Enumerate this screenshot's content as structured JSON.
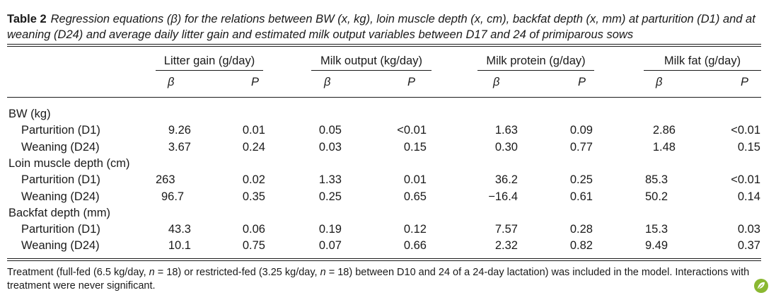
{
  "caption": {
    "label": "Table 2",
    "text": "Regression equations (β) for the relations between BW (x, kg), loin muscle depth (x, cm), backfat depth (x, mm) at parturition (D1) and at weaning (D24) and average daily litter gain and estimated milk output variables between D17 and 24 of primiparous sows"
  },
  "groups": [
    "Litter gain (g/day)",
    "Milk output (kg/day)",
    "Milk protein (g/day)",
    "Milk fat (g/day)"
  ],
  "subheaders": {
    "beta": "β",
    "p": "P"
  },
  "sections": [
    {
      "title": "BW (kg)",
      "rows": [
        {
          "label": "Parturition (D1)",
          "values": [
            "9.26",
            "0.01",
            "0.05",
            "<0.01",
            "1.63",
            "0.09",
            "2.86",
            "<0.01"
          ]
        },
        {
          "label": "Weaning (D24)",
          "values": [
            "3.67",
            "0.24",
            "0.03",
            "0.15",
            "0.30",
            "0.77",
            "1.48",
            "0.15"
          ]
        }
      ]
    },
    {
      "title": "Loin muscle depth (cm)",
      "rows": [
        {
          "label": "Parturition (D1)",
          "values": [
            "263",
            "0.02",
            "1.33",
            "0.01",
            "36.2",
            "0.25",
            "85.3",
            "<0.01"
          ]
        },
        {
          "label": "Weaning (D24)",
          "values": [
            "96.7",
            "0.35",
            "0.25",
            "0.65",
            "−16.4",
            "0.61",
            "50.2",
            "0.14"
          ]
        }
      ]
    },
    {
      "title": "Backfat depth (mm)",
      "rows": [
        {
          "label": "Parturition (D1)",
          "values": [
            "43.3",
            "0.06",
            "0.19",
            "0.12",
            "7.57",
            "0.28",
            "15.3",
            "0.03"
          ]
        },
        {
          "label": "Weaning (D24)",
          "values": [
            "10.1",
            "0.75",
            "0.07",
            "0.66",
            "2.32",
            "0.82",
            "9.49",
            "0.37"
          ]
        }
      ]
    }
  ],
  "footnote": {
    "part1": "Treatment (full-fed (6.5 kg/day, ",
    "n1": "n",
    "part2": " = 18) or restricted-fed (3.25 kg/day, ",
    "n2": "n",
    "part3": " = 18) between D10 and 24 of a 24-day lactation) was included in the model. Interactions with treatment were never significant."
  },
  "colors": {
    "text": "#1a1a1a",
    "leaf_badge": "#8ab832"
  },
  "icons": {
    "badge": "leaf-badge-icon"
  }
}
